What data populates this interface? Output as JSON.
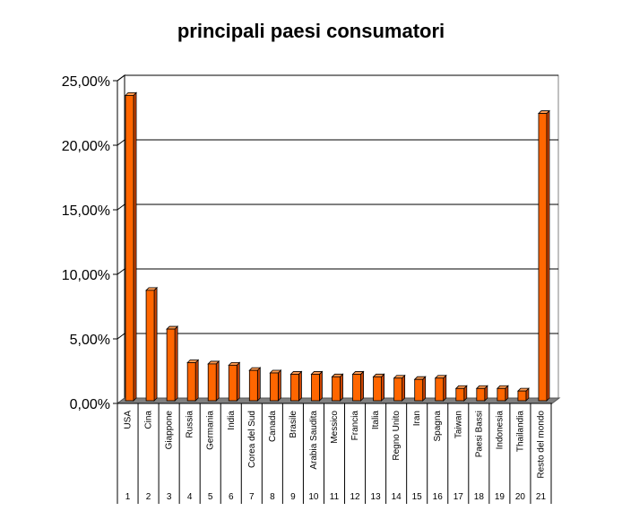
{
  "chart_data": {
    "type": "bar",
    "title": "principali paesi consumatori",
    "xlabel": "",
    "ylabel": "",
    "ylim": [
      0,
      25
    ],
    "y_ticks": [
      "0,00%",
      "5,00%",
      "10,00%",
      "15,00%",
      "20,00%",
      "25,00%"
    ],
    "grid": true,
    "legend": "none",
    "categories": [
      "USA",
      "Cina",
      "Giappone",
      "Russia",
      "Germania",
      "India",
      "Corea del Sud",
      "Canada",
      "Brasile",
      "Arabia Saudita",
      "Messico",
      "Francia",
      "Italia",
      "Regno Unito",
      "Iran",
      "Spagna",
      "Taiwan",
      "Paesi Bassi",
      "Indonesia",
      "Thailandia",
      "Resto del mondo"
    ],
    "index_labels": [
      "1",
      "2",
      "3",
      "4",
      "5",
      "6",
      "7",
      "8",
      "9",
      "10",
      "11",
      "12",
      "13",
      "14",
      "15",
      "16",
      "17",
      "18",
      "19",
      "20",
      "21"
    ],
    "values": [
      24.0,
      8.9,
      5.9,
      3.3,
      3.2,
      3.1,
      2.7,
      2.5,
      2.4,
      2.4,
      2.2,
      2.4,
      2.2,
      2.1,
      2.0,
      2.1,
      1.3,
      1.3,
      1.3,
      1.1,
      22.6
    ],
    "colors": {
      "bar_front": "#ff6600",
      "bar_side": "#cc4400",
      "bar_top": "#ff9a50",
      "floor": "#808080",
      "wall_shadow": "#c0c0c0",
      "grid": "#000000"
    }
  }
}
